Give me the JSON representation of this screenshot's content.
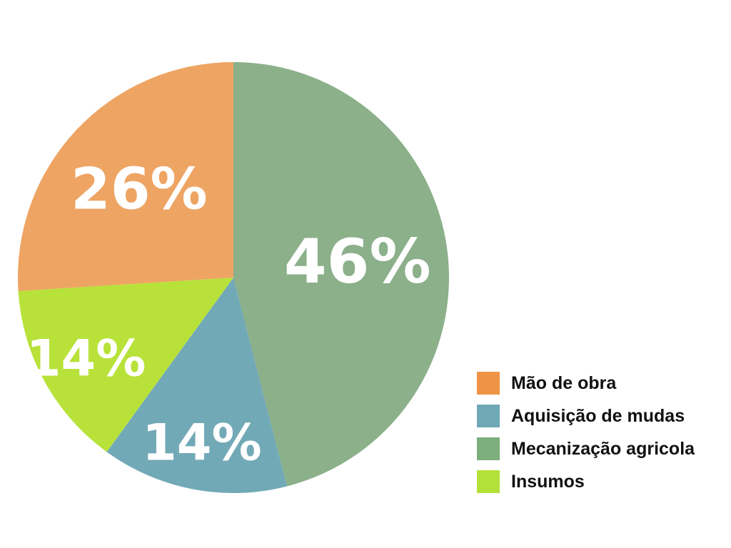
{
  "chart_data": {
    "type": "pie",
    "slices": [
      {
        "category": "Mecanização agricola",
        "value": 46,
        "label": "46%",
        "color": "#8bb08a",
        "legend_color": "#7daf7c"
      },
      {
        "category": "Aquisição de mudas",
        "value": 14,
        "label": "14%",
        "color": "#72a9b7",
        "legend_color": "#6fa8b6"
      },
      {
        "category": "Insumos",
        "value": 14,
        "label": "14%",
        "color": "#b8e23a",
        "legend_color": "#b4e23a"
      },
      {
        "category": "Mão de obra",
        "value": 26,
        "label": "26%",
        "color": "#eea462",
        "legend_color": "#ef9447"
      }
    ],
    "legend": {
      "placement": "bottom-right",
      "entries": [
        {
          "label": "Mão de obra",
          "color": "#ef9447"
        },
        {
          "label": "Aquisição de mudas",
          "color": "#6fa8b6"
        },
        {
          "label": "Mecanização agricola",
          "color": "#7daf7c"
        },
        {
          "label": "Insumos",
          "color": "#b4e23a"
        }
      ]
    }
  }
}
